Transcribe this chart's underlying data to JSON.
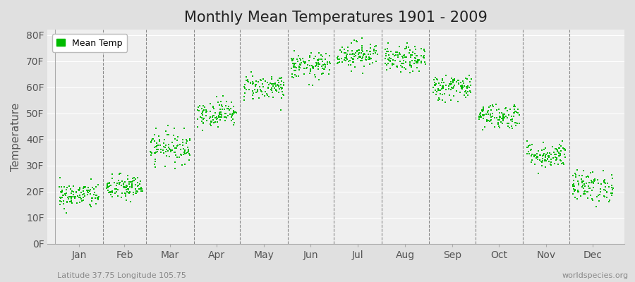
{
  "title": "Monthly Mean Temperatures 1901 - 2009",
  "ylabel": "Temperature",
  "xlabel_labels": [
    "Jan",
    "Feb",
    "Mar",
    "Apr",
    "May",
    "Jun",
    "Jul",
    "Aug",
    "Sep",
    "Oct",
    "Nov",
    "Dec"
  ],
  "ytick_labels": [
    "0F",
    "10F",
    "20F",
    "30F",
    "40F",
    "50F",
    "60F",
    "70F",
    "80F"
  ],
  "ytick_values": [
    0,
    10,
    20,
    30,
    40,
    50,
    60,
    70,
    80
  ],
  "ylim": [
    0,
    82
  ],
  "legend_label": "Mean Temp",
  "dot_color": "#00bb00",
  "bg_color": "#e0e0e0",
  "plot_bg_color": "#efefef",
  "footer_left": "Latitude 37.75 Longitude 105.75",
  "footer_right": "worldspecies.org",
  "monthly_means": [
    18.5,
    21.5,
    37.0,
    50.0,
    60.0,
    68.0,
    72.5,
    70.5,
    60.0,
    49.0,
    34.0,
    22.0
  ],
  "monthly_spreads": [
    2.5,
    2.5,
    3.0,
    2.5,
    2.5,
    2.5,
    2.5,
    2.5,
    2.5,
    2.5,
    2.5,
    3.0
  ],
  "n_years": 109,
  "seed": 42,
  "xlim_start": 0,
  "xlim_end": 1308,
  "title_fontsize": 15,
  "tick_fontsize": 10,
  "ylabel_fontsize": 11
}
